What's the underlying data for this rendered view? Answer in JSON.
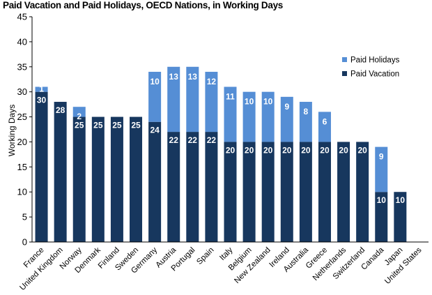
{
  "chart_data": {
    "type": "bar",
    "stacked": true,
    "title": "Paid Vacation and Paid Holidays, OECD Nations, in Working Days",
    "xlabel": "",
    "ylabel": "Working Days",
    "ylim": [
      0,
      45
    ],
    "ytick_step": 5,
    "grid": false,
    "legend_position": "right",
    "categories": [
      "France",
      "United Kingdom",
      "Norway",
      "Denmark",
      "Finland",
      "Sweden",
      "Germany",
      "Austria",
      "Portugal",
      "Spain",
      "Italy",
      "Belgium",
      "New Zealand",
      "Ireland",
      "Australia",
      "Greece",
      "Netherlands",
      "Switzerland",
      "Canada",
      "Japan",
      "United States"
    ],
    "series": [
      {
        "name": "Paid Vacation",
        "color": "#17375e",
        "values": [
          30,
          28,
          25,
          25,
          25,
          25,
          24,
          22,
          22,
          22,
          20,
          20,
          20,
          20,
          20,
          20,
          20,
          20,
          10,
          10,
          0
        ]
      },
      {
        "name": "Paid Holidays",
        "color": "#558ed5",
        "values": [
          1,
          0,
          2,
          0,
          0,
          0,
          10,
          13,
          13,
          12,
          11,
          10,
          10,
          9,
          8,
          6,
          0,
          0,
          9,
          0,
          0
        ]
      }
    ],
    "legend_order": [
      "Paid Holidays",
      "Paid Vacation"
    ]
  }
}
